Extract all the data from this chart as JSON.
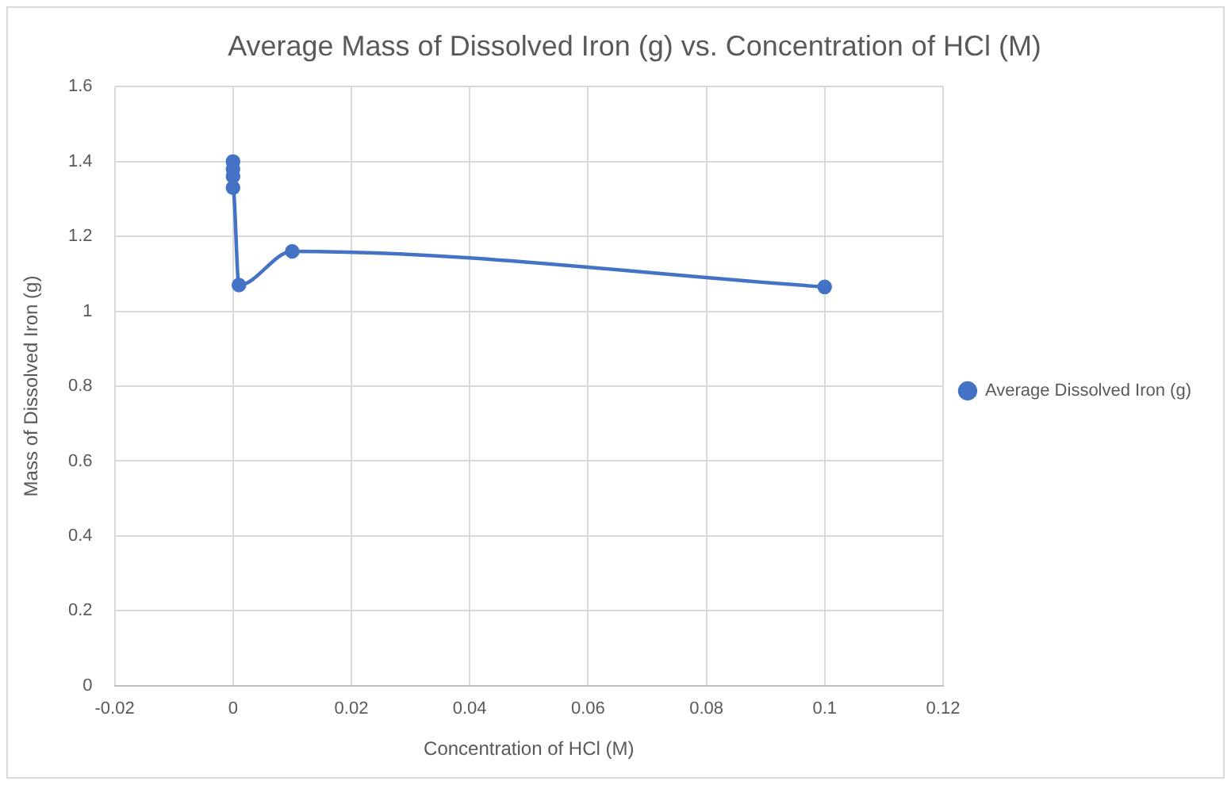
{
  "chart_data": {
    "type": "line",
    "title": "Average Mass of Dissolved Iron (g) vs. Concentration of HCl (M)",
    "xlabel": "Concentration of HCl (M)",
    "ylabel": "Mass of Dissolved Iron (g)",
    "series": [
      {
        "name": "Average Dissolved Iron (g)",
        "color": "#4472c4",
        "x": [
          0,
          0,
          0,
          0,
          0.001,
          0.01,
          0.1
        ],
        "values": [
          1.4,
          1.38,
          1.36,
          1.33,
          1.07,
          1.16,
          1.065
        ]
      }
    ],
    "xlim": [
      -0.02,
      0.12
    ],
    "xticks": [
      -0.02,
      0,
      0.02,
      0.04,
      0.06,
      0.08,
      0.1,
      0.12
    ],
    "ylim": [
      0,
      1.6
    ],
    "yticks": [
      0,
      0.2,
      0.4,
      0.6,
      0.8,
      1,
      1.2,
      1.4,
      1.6
    ],
    "grid": true,
    "legend": "right",
    "marker": "circle",
    "line_style": "solid"
  }
}
